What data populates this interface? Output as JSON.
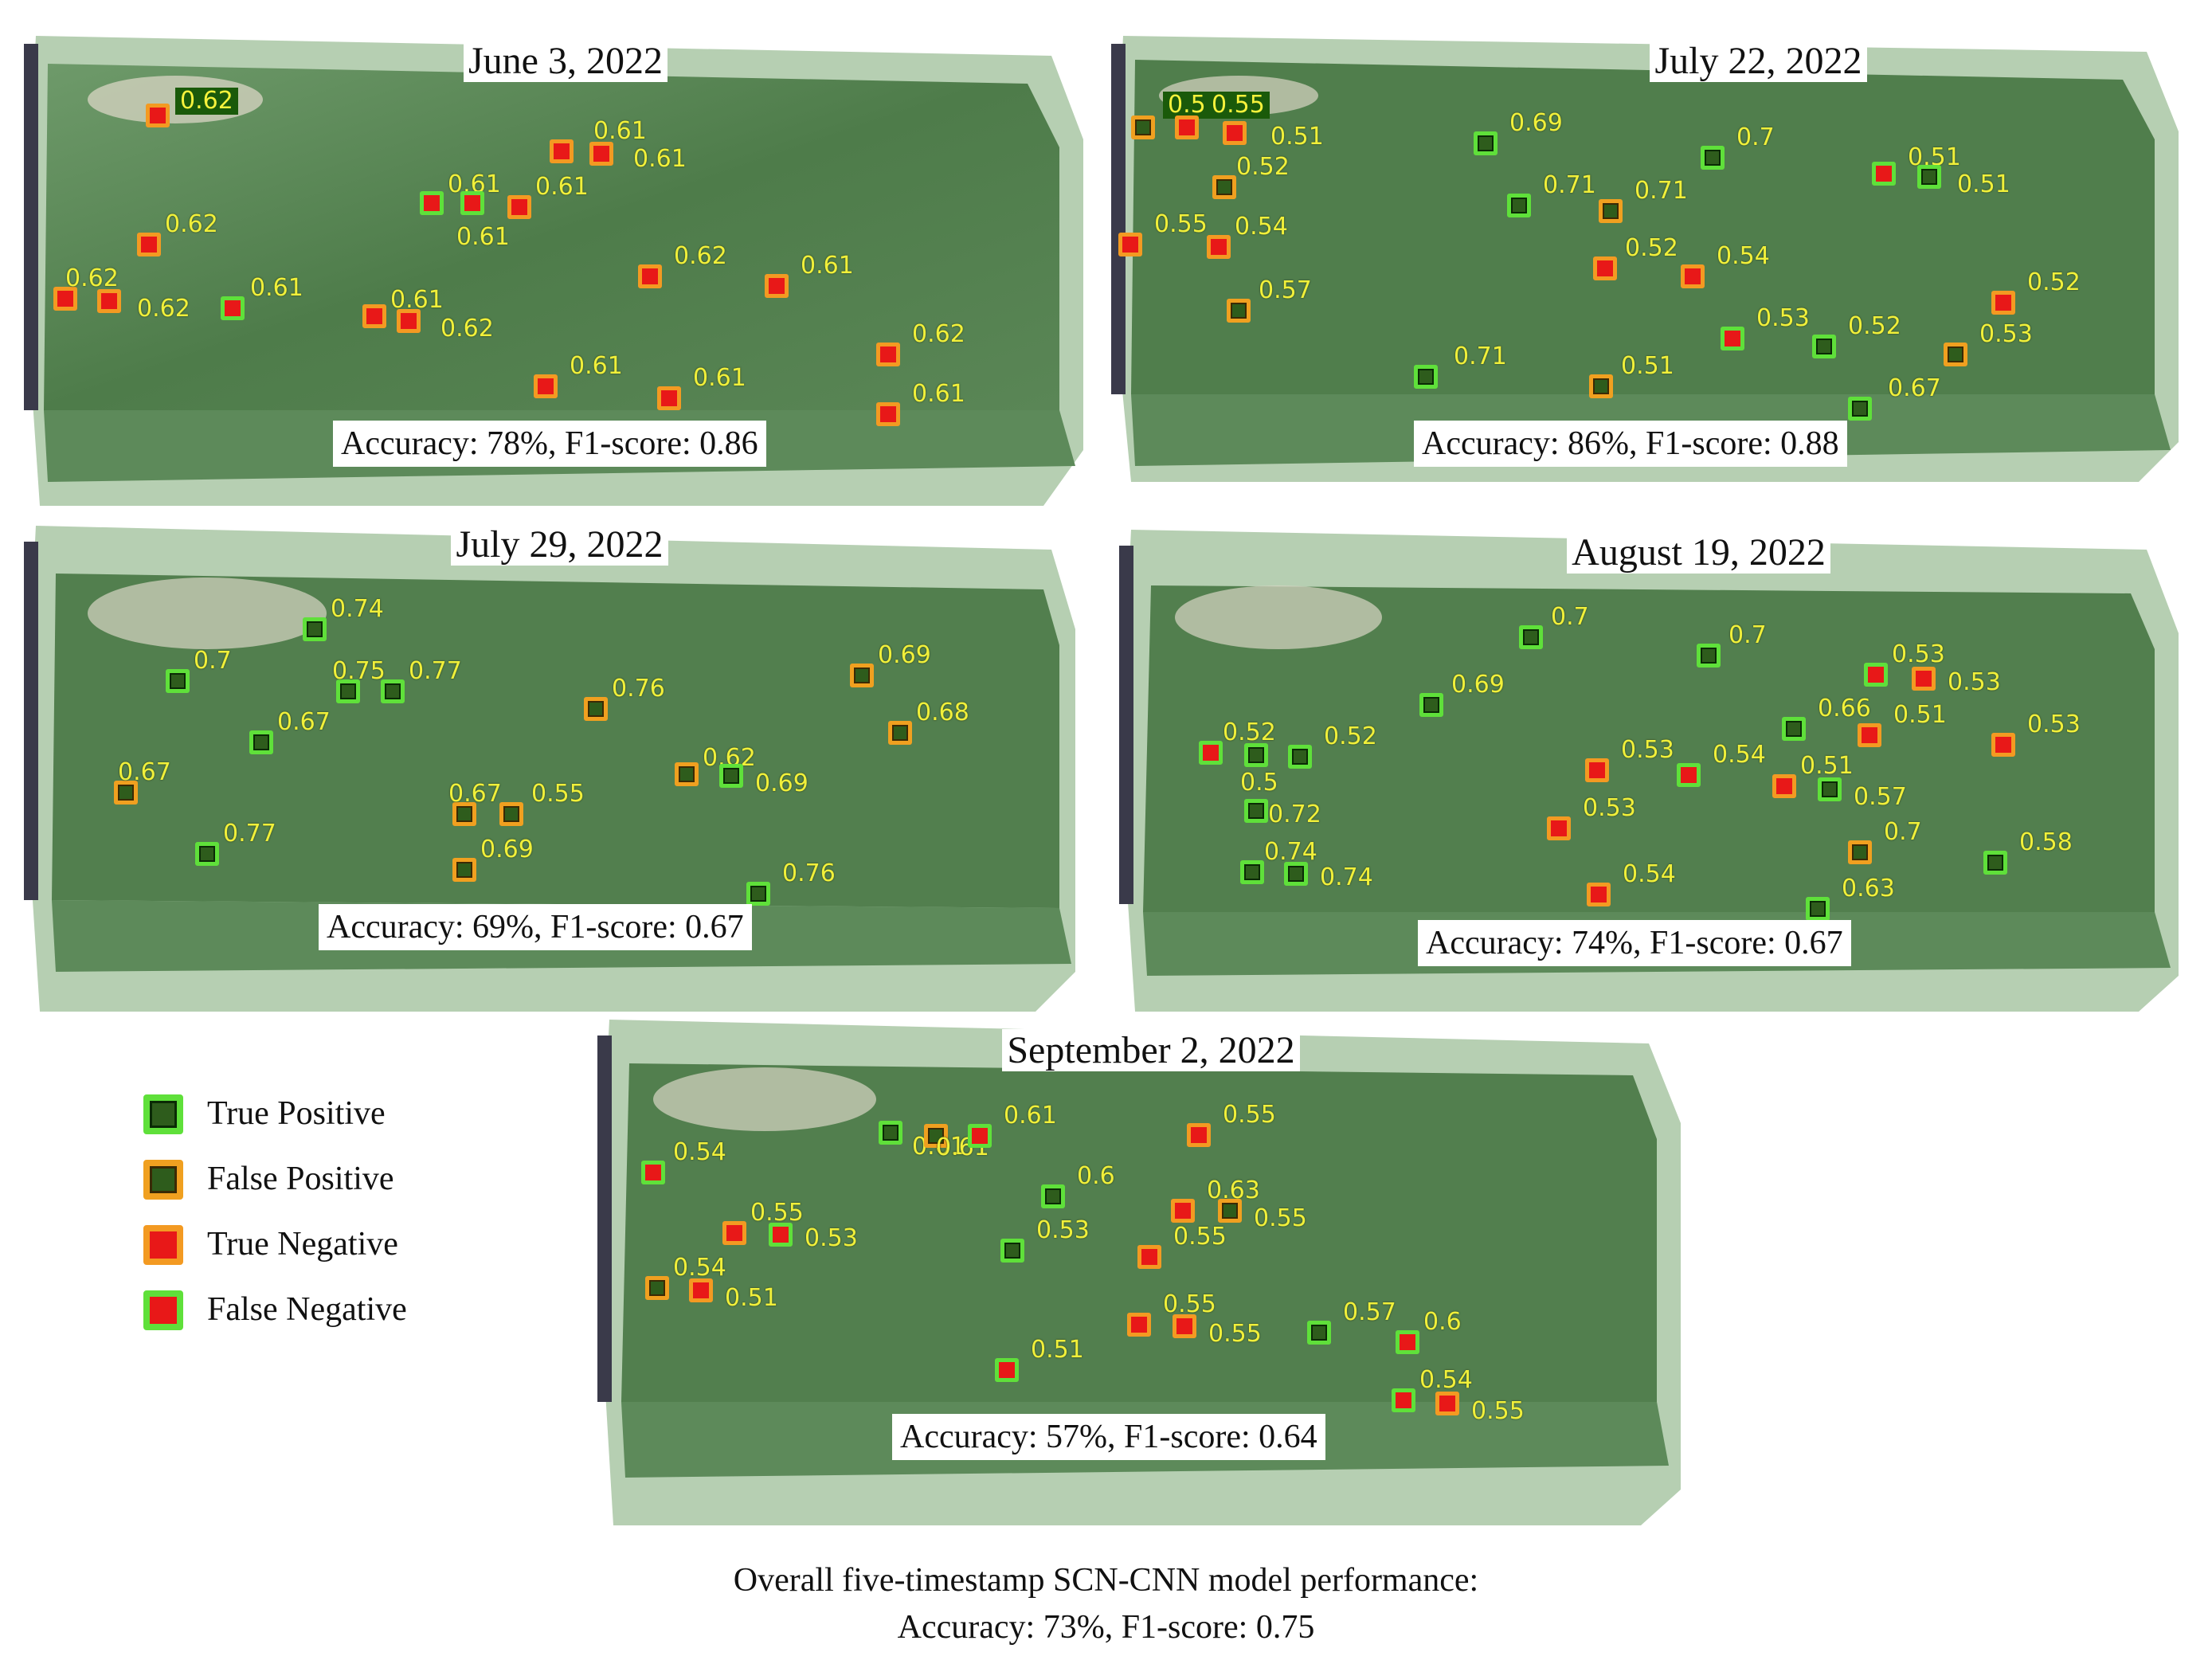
{
  "panels": [
    {
      "title": "June 3, 2022",
      "accuracy": "Accuracy: 78%, F1-score: 0.86",
      "markers": [
        {
          "type": "tn",
          "label": "0.62",
          "boxed": true
        },
        {
          "type": "tn",
          "label": "0.61"
        },
        {
          "type": "tn",
          "label": "0.61"
        },
        {
          "type": "fn",
          "label": "0.61"
        },
        {
          "type": "fn",
          "label": "0.61"
        },
        {
          "type": "tn",
          "label": "0.61"
        },
        {
          "type": "tn",
          "label": "0.62"
        },
        {
          "type": "tn",
          "label": "0.62"
        },
        {
          "type": "tn",
          "label": "0.62"
        },
        {
          "type": "fn",
          "label": "0.61"
        },
        {
          "type": "tn",
          "label": "0.61"
        },
        {
          "type": "tn",
          "label": "0.62"
        },
        {
          "type": "tn",
          "label": "0.62"
        },
        {
          "type": "tn",
          "label": "0.61"
        },
        {
          "type": "tn",
          "label": "0.62"
        },
        {
          "type": "tn",
          "label": "0.61"
        },
        {
          "type": "tn",
          "label": "0.61"
        },
        {
          "type": "tn",
          "label": "0.61"
        }
      ]
    },
    {
      "title": "July 22, 2022",
      "accuracy": "Accuracy: 86%, F1-score: 0.88",
      "markers": [
        {
          "type": "fp",
          "label": "0.58",
          "boxed": true
        },
        {
          "type": "tn",
          "label": "0.55",
          "boxed": true
        },
        {
          "type": "tn",
          "label": "0.51"
        },
        {
          "type": "tp",
          "label": "0.69"
        },
        {
          "type": "tp",
          "label": "0.7"
        },
        {
          "type": "fn",
          "label": "0.51"
        },
        {
          "type": "tp",
          "label": "0.51"
        },
        {
          "type": "fp",
          "label": "0.52"
        },
        {
          "type": "tp",
          "label": "0.71"
        },
        {
          "type": "fp",
          "label": "0.71"
        },
        {
          "type": "tn",
          "label": "0.55"
        },
        {
          "type": "tn",
          "label": "0.54"
        },
        {
          "type": "tn",
          "label": "0.52"
        },
        {
          "type": "tn",
          "label": "0.54"
        },
        {
          "type": "fp",
          "label": "0.57"
        },
        {
          "type": "tn",
          "label": "0.52"
        },
        {
          "type": "fn",
          "label": "0.53"
        },
        {
          "type": "tp",
          "label": "0.52"
        },
        {
          "type": "fp",
          "label": "0.53"
        },
        {
          "type": "tp",
          "label": "0.71"
        },
        {
          "type": "fp",
          "label": "0.51"
        },
        {
          "type": "tp",
          "label": "0.67"
        }
      ]
    },
    {
      "title": "July 29, 2022",
      "accuracy": "Accuracy: 69%, F1-score: 0.67",
      "markers": [
        {
          "type": "tp",
          "label": "0.74"
        },
        {
          "type": "tp",
          "label": "0.7"
        },
        {
          "type": "tp",
          "label": "0.75"
        },
        {
          "type": "tp",
          "label": "0.77"
        },
        {
          "type": "fp",
          "label": "0.76"
        },
        {
          "type": "fp",
          "label": "0.69"
        },
        {
          "type": "tp",
          "label": "0.67"
        },
        {
          "type": "fp",
          "label": "0.68"
        },
        {
          "type": "fp",
          "label": "0.67"
        },
        {
          "type": "fp",
          "label": "0.62"
        },
        {
          "type": "tp",
          "label": "0.69"
        },
        {
          "type": "fp",
          "label": "0.67"
        },
        {
          "type": "fp",
          "label": "0.55"
        },
        {
          "type": "tp",
          "label": "0.77"
        },
        {
          "type": "fp",
          "label": "0.69"
        },
        {
          "type": "tp",
          "label": "0.76"
        }
      ]
    },
    {
      "title": "August 19, 2022",
      "accuracy": "Accuracy: 74%, F1-score: 0.67",
      "markers": [
        {
          "type": "tp",
          "label": "0.7"
        },
        {
          "type": "tp",
          "label": "0.7"
        },
        {
          "type": "fn",
          "label": "0.53"
        },
        {
          "type": "tn",
          "label": "0.53"
        },
        {
          "type": "tp",
          "label": "0.69"
        },
        {
          "type": "tp",
          "label": "0.66"
        },
        {
          "type": "tn",
          "label": "0.51"
        },
        {
          "type": "tn",
          "label": "0.53"
        },
        {
          "type": "fn",
          "label": "0.52"
        },
        {
          "type": "tp",
          "label": "0.5"
        },
        {
          "type": "tp",
          "label": "0.52"
        },
        {
          "type": "tn",
          "label": "0.53"
        },
        {
          "type": "fn",
          "label": "0.54"
        },
        {
          "type": "tn",
          "label": "0.51"
        },
        {
          "type": "tp",
          "label": "0.57"
        },
        {
          "type": "tp",
          "label": "0.72"
        },
        {
          "type": "tn",
          "label": "0.53"
        },
        {
          "type": "fp",
          "label": "0.7"
        },
        {
          "type": "tp",
          "label": "0.58"
        },
        {
          "type": "tp",
          "label": "0.74"
        },
        {
          "type": "tp",
          "label": "0.74"
        },
        {
          "type": "tn",
          "label": "0.54"
        },
        {
          "type": "tp",
          "label": "0.63"
        }
      ]
    },
    {
      "title": "September 2, 2022",
      "accuracy": "Accuracy: 57%, F1-score: 0.64",
      "markers": [
        {
          "type": "tp",
          "label": ""
        },
        {
          "type": "fp",
          "label": "0.61"
        },
        {
          "type": "fn",
          "label": "0.61"
        },
        {
          "type": "tn",
          "label": "0.55"
        },
        {
          "type": "fn",
          "label": "0.54"
        },
        {
          "type": "tp",
          "label": "0.6"
        },
        {
          "type": "tn",
          "label": "0.63"
        },
        {
          "type": "fp",
          "label": "0.55"
        },
        {
          "type": "tn",
          "label": "0.55"
        },
        {
          "type": "fn",
          "label": "0.53"
        },
        {
          "type": "tp",
          "label": "0.53"
        },
        {
          "type": "tn",
          "label": "0.55"
        },
        {
          "type": "fp",
          "label": "0.54"
        },
        {
          "type": "tn",
          "label": "0.51"
        },
        {
          "type": "tn",
          "label": "0.55"
        },
        {
          "type": "tn",
          "label": "0.55"
        },
        {
          "type": "tp",
          "label": "0.57"
        },
        {
          "type": "fn",
          "label": "0.6"
        },
        {
          "type": "fn",
          "label": "0.51"
        },
        {
          "type": "fn",
          "label": "0.54"
        },
        {
          "type": "tn",
          "label": "0.55"
        }
      ],
      "extra_label": "0.61"
    }
  ],
  "legend": [
    {
      "type": "tp",
      "label": "True Positive"
    },
    {
      "type": "fp",
      "label": "False Positive"
    },
    {
      "type": "tn",
      "label": "True Negative"
    },
    {
      "type": "fn",
      "label": "False Negative"
    }
  ],
  "caption": {
    "line1": "Overall five-timestamp SCN-CNN model performance:",
    "line2": "Accuracy: 73%, F1-score: 0.75"
  },
  "colors": {
    "field_green": "#4f8a4a",
    "true_positive_fill": "#2e5c1c",
    "negative_fill": "#e81818",
    "green_border": "#5fe03a",
    "orange_border": "#f39a22",
    "label_yellow": "#f1f03a"
  }
}
